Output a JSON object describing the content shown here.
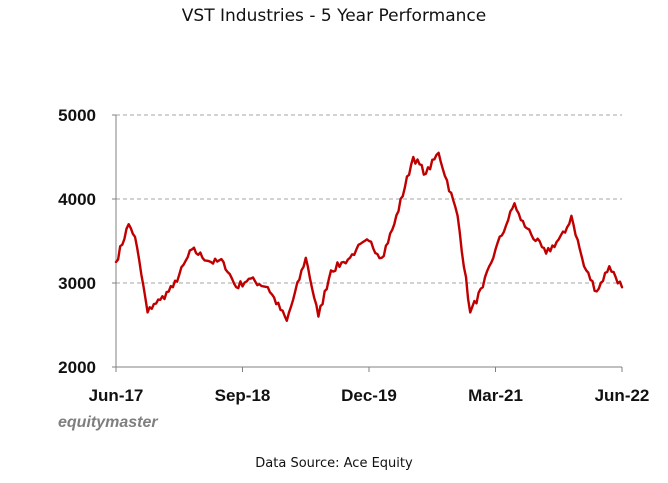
{
  "chart_data": {
    "type": "line",
    "title": "VST Industries - 5 Year Performance",
    "xlabel": "",
    "ylabel": "",
    "ylim": [
      2000,
      5000
    ],
    "yticks": [
      2000,
      3000,
      4000,
      5000
    ],
    "ytick_labels": [
      "2000",
      "3000",
      "4000",
      "5000"
    ],
    "grid": "horizontal-dashed",
    "x_categories": [
      "Jun-17",
      "Sep-18",
      "Dec-19",
      "Mar-21",
      "Jun-22"
    ],
    "series": [
      {
        "name": "VST Industries",
        "color": "#c00000",
        "x": [
          0.0,
          0.1,
          0.15,
          0.25,
          0.3,
          0.35,
          0.45,
          0.6,
          0.75,
          0.85,
          0.95,
          1.05,
          1.2,
          1.35,
          1.5,
          1.6,
          1.7,
          1.8,
          1.85,
          1.9,
          2.0,
          2.1,
          2.2,
          2.35,
          2.45,
          2.55,
          2.7,
          2.8,
          2.9,
          3.0,
          3.1,
          3.15,
          3.2,
          3.25,
          3.4,
          3.55,
          3.6,
          3.7,
          3.8,
          3.9,
          4.0
        ],
        "y": [
          3250,
          3700,
          3550,
          2650,
          2750,
          2800,
          2950,
          3400,
          3250,
          3250,
          2950,
          3050,
          2950,
          2550,
          3300,
          2600,
          3150,
          3250,
          3300,
          3400,
          3500,
          3300,
          3700,
          4500,
          4300,
          4550,
          3800,
          2650,
          2950,
          3400,
          3750,
          3950,
          3750,
          3650,
          3350,
          3600,
          3800,
          3200,
          2900,
          3200,
          2950
        ]
      }
    ]
  },
  "watermark": "equitymaster",
  "source": "Data Source: Ace Equity"
}
